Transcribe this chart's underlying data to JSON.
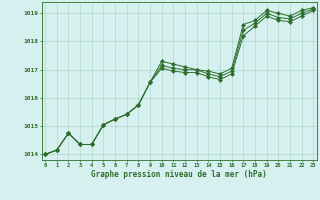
{
  "title": "Graphe pression niveau de la mer (hPa)",
  "xlabel_ticks": [
    0,
    1,
    2,
    3,
    4,
    5,
    6,
    7,
    8,
    9,
    10,
    11,
    12,
    13,
    14,
    15,
    16,
    17,
    18,
    19,
    20,
    21,
    22,
    23
  ],
  "ylim": [
    1013.8,
    1019.4
  ],
  "xlim": [
    -0.3,
    23.3
  ],
  "yticks": [
    1014,
    1015,
    1016,
    1017,
    1018,
    1019
  ],
  "background_color": "#d6f0f0",
  "grid_color": "#b0d8cc",
  "line_color": "#2d6e2d",
  "series1": [
    1014.0,
    1014.15,
    1014.75,
    1014.35,
    1014.35,
    1015.05,
    1015.25,
    1015.42,
    1015.75,
    1016.55,
    1017.3,
    1017.2,
    1017.1,
    1017.0,
    1016.95,
    1016.85,
    1017.05,
    1018.6,
    1018.75,
    1019.1,
    1019.0,
    1018.9,
    1019.1,
    1019.2
  ],
  "series2": [
    1014.0,
    1014.15,
    1014.75,
    1014.35,
    1014.35,
    1015.05,
    1015.25,
    1015.42,
    1015.75,
    1016.55,
    1017.15,
    1017.05,
    1017.0,
    1017.0,
    1016.85,
    1016.75,
    1016.95,
    1018.4,
    1018.65,
    1019.0,
    1018.85,
    1018.8,
    1019.0,
    1019.15
  ],
  "series3": [
    1014.0,
    1014.15,
    1014.75,
    1014.35,
    1014.35,
    1015.05,
    1015.25,
    1015.42,
    1015.75,
    1016.55,
    1017.05,
    1016.95,
    1016.9,
    1016.9,
    1016.75,
    1016.65,
    1016.85,
    1018.2,
    1018.55,
    1018.9,
    1018.75,
    1018.7,
    1018.9,
    1019.1
  ]
}
